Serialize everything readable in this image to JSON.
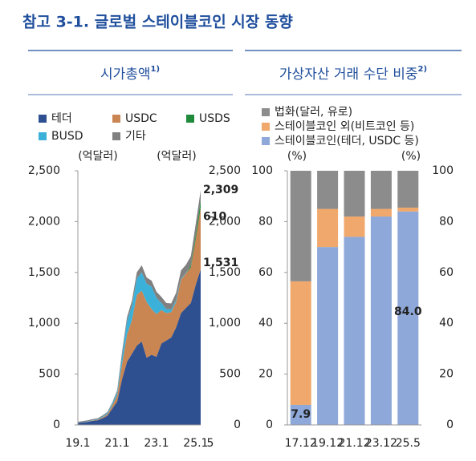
{
  "title": "참고 3-1. 글로벌 스테이블코인 시장 동향",
  "chart_data": [
    {
      "type": "area",
      "stacked": true,
      "title": "시가총액",
      "title_note": "1)",
      "y_unit": "(억달러)",
      "y2_unit": "(억달러)",
      "categories": [
        "19.1",
        null,
        null,
        null,
        null,
        null,
        null,
        null,
        "21.1",
        null,
        null,
        null,
        null,
        null,
        null,
        null,
        "23.1",
        null,
        null,
        null,
        null,
        null,
        null,
        null,
        "25.1",
        "5"
      ],
      "ylim": [
        0,
        2500
      ],
      "yticks": [
        0,
        500,
        {
          "value": 1000,
          "label": "1,000"
        },
        {
          "value": 1500,
          "label": "1,500"
        },
        {
          "value": 2000,
          "label": "2,000"
        },
        {
          "value": 2500,
          "label": "2,500"
        }
      ],
      "series": [
        {
          "name": "테더",
          "color": "#2e5090",
          "values": [
            20,
            25,
            30,
            40,
            45,
            65,
            90,
            160,
            230,
            450,
            620,
            700,
            780,
            820,
            660,
            690,
            670,
            800,
            830,
            860,
            960,
            1100,
            1150,
            1200,
            1380,
            1531
          ]
        },
        {
          "name": "USDC",
          "color": "#c98552",
          "values": [
            0,
            1,
            2,
            4,
            5,
            10,
            15,
            30,
            60,
            150,
            270,
            330,
            500,
            500,
            550,
            450,
            420,
            330,
            270,
            250,
            250,
            330,
            340,
            350,
            450,
            610
          ]
        },
        {
          "name": "USDS",
          "color": "#1f8a3b",
          "values": [
            0,
            0,
            0,
            0,
            0,
            0,
            0,
            0,
            0,
            0,
            0,
            0,
            0,
            0,
            0,
            0,
            0,
            0,
            0,
            0,
            0,
            0,
            0,
            20,
            40,
            70
          ]
        },
        {
          "name": "BUSD",
          "color": "#3bb1d9",
          "values": [
            0,
            2,
            3,
            3,
            5,
            8,
            12,
            20,
            30,
            80,
            130,
            140,
            160,
            180,
            180,
            220,
            160,
            70,
            40,
            25,
            20,
            10,
            5,
            0,
            0,
            0
          ]
        },
        {
          "name": "기타",
          "color": "#808080",
          "values": [
            10,
            10,
            10,
            10,
            10,
            10,
            10,
            10,
            20,
            40,
            40,
            50,
            60,
            70,
            60,
            60,
            60,
            60,
            60,
            60,
            70,
            80,
            80,
            90,
            110,
            98
          ]
        }
      ],
      "annotations": [
        {
          "value": 2309,
          "label": "2,309",
          "color": "#222222"
        },
        {
          "value": 610,
          "label": "610",
          "color": "#c98552",
          "series": 1
        },
        {
          "value": 1531,
          "label": "1,531",
          "color": "#2e5090",
          "series": 0
        }
      ]
    },
    {
      "type": "bar",
      "stacked": true,
      "title": "가상자산 거래 수단 비중",
      "title_note": "2)",
      "y_unit": "(%)",
      "y2_unit": "(%)",
      "categories": [
        "17.12",
        "19.12",
        "21.12",
        "23.12",
        "25.5"
      ],
      "ylim": [
        0,
        100
      ],
      "yticks": [
        0,
        20,
        40,
        60,
        80,
        100
      ],
      "series": [
        {
          "name": "스테이블코인(테더, USDC 등)",
          "color": "#8ea8d9",
          "values": [
            7.9,
            70,
            74,
            82,
            84
          ],
          "value_labels": [
            "7.9",
            null,
            null,
            null,
            "84.0"
          ]
        },
        {
          "name": "스테이블코인 외(비트코인 등)",
          "color": "#f0a86c",
          "values": [
            48.6,
            15,
            8,
            3,
            1.5
          ]
        },
        {
          "name": "법화(달러, 유로)",
          "color": "#8c8c8c",
          "values": [
            43.5,
            15,
            18,
            15,
            14.5
          ]
        }
      ]
    }
  ]
}
